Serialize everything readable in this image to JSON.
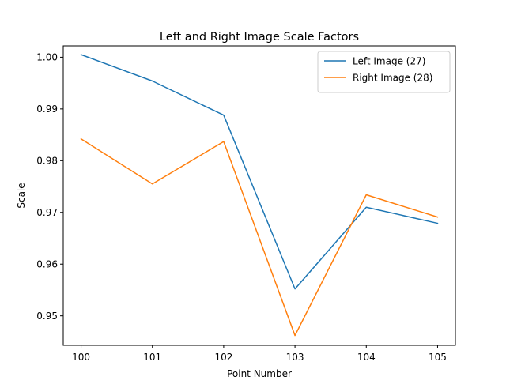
{
  "chart_data": {
    "type": "line",
    "title": "Left and Right Image Scale Factors",
    "xlabel": "Point Number",
    "ylabel": "Scale",
    "x": [
      100,
      101,
      102,
      103,
      104,
      105
    ],
    "xticks": [
      "100",
      "101",
      "102",
      "103",
      "104",
      "105"
    ],
    "yticks": [
      "0.95",
      "0.96",
      "0.97",
      "0.98",
      "0.99",
      "1.00"
    ],
    "ytick_values": [
      0.95,
      0.96,
      0.97,
      0.98,
      0.99,
      1.0
    ],
    "xlim": [
      99.75,
      105.25
    ],
    "ylim": [
      0.9443,
      1.0022
    ],
    "grid": false,
    "legend_position": "top-right",
    "series": [
      {
        "name": "Left Image (27)",
        "color": "#1f77b4",
        "values": [
          1.0005,
          0.9954,
          0.9888,
          0.9552,
          0.971,
          0.9679
        ]
      },
      {
        "name": "Right Image (28)",
        "color": "#ff7f0e",
        "values": [
          0.9842,
          0.9755,
          0.9837,
          0.9462,
          0.9734,
          0.9691
        ]
      }
    ]
  }
}
